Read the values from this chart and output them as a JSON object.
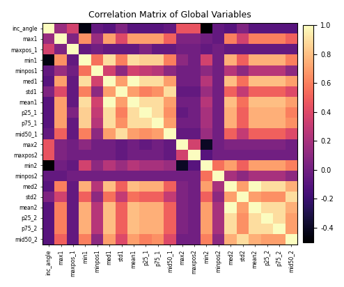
{
  "labels": [
    "inc_angle",
    "max1",
    "maxpos_1",
    "min1",
    "minpos1",
    "med1",
    "std1",
    "mean1",
    "p25_1",
    "p75_1",
    "mid50_1",
    "max2",
    "maxpos2",
    "min2",
    "minpos2",
    "med2",
    "std2",
    "mean2",
    "p25_2",
    "p75_2",
    "mid50_2"
  ],
  "title": "Correlation Matrix of Global Variables",
  "cmap": "magma",
  "vmin": -0.5,
  "vmax": 1.0,
  "figsize": [
    4.94,
    4.12
  ],
  "dpi": 100,
  "matrix": [
    [
      1.0,
      0.15,
      0.35,
      -0.45,
      -0.05,
      -0.1,
      0.05,
      -0.1,
      -0.1,
      -0.1,
      -0.05,
      0.45,
      0.45,
      -0.5,
      -0.05,
      -0.1,
      0.05,
      -0.1,
      -0.1,
      -0.1,
      -0.1
    ],
    [
      0.15,
      1.0,
      0.05,
      0.65,
      0.15,
      0.7,
      0.4,
      0.7,
      0.7,
      0.7,
      0.5,
      0.05,
      0.05,
      0.0,
      -0.05,
      0.6,
      0.35,
      0.6,
      0.6,
      0.6,
      0.5
    ],
    [
      0.35,
      0.05,
      1.0,
      -0.05,
      0.0,
      -0.05,
      -0.05,
      -0.05,
      0.05,
      -0.05,
      -0.05,
      0.0,
      0.0,
      -0.05,
      0.0,
      -0.05,
      -0.05,
      -0.05,
      -0.05,
      -0.05,
      -0.05
    ],
    [
      -0.45,
      0.65,
      -0.05,
      1.0,
      0.55,
      0.9,
      0.6,
      0.9,
      0.85,
      0.85,
      0.6,
      0.1,
      0.0,
      0.35,
      0.0,
      0.75,
      0.5,
      0.75,
      0.75,
      0.75,
      0.6
    ],
    [
      -0.05,
      0.15,
      0.0,
      0.55,
      1.0,
      0.35,
      0.1,
      0.35,
      0.3,
      0.25,
      0.1,
      0.0,
      0.0,
      0.1,
      0.0,
      0.25,
      0.1,
      0.25,
      0.25,
      0.25,
      0.1
    ],
    [
      -0.1,
      0.7,
      -0.05,
      0.9,
      0.35,
      1.0,
      0.7,
      1.0,
      0.9,
      0.9,
      0.7,
      0.0,
      0.0,
      0.25,
      0.0,
      0.8,
      0.55,
      0.8,
      0.8,
      0.8,
      0.7
    ],
    [
      0.05,
      0.4,
      -0.05,
      0.6,
      0.1,
      0.7,
      1.0,
      0.7,
      0.6,
      0.65,
      0.9,
      -0.05,
      -0.05,
      0.15,
      0.0,
      0.5,
      0.3,
      0.5,
      0.5,
      0.5,
      0.4
    ],
    [
      -0.1,
      0.7,
      -0.05,
      0.9,
      0.35,
      1.0,
      0.7,
      1.0,
      0.9,
      0.9,
      0.7,
      0.0,
      0.0,
      0.25,
      0.0,
      0.8,
      0.55,
      0.8,
      0.8,
      0.8,
      0.7
    ],
    [
      -0.1,
      0.7,
      0.05,
      0.85,
      0.3,
      0.9,
      0.6,
      0.9,
      1.0,
      0.9,
      0.65,
      -0.05,
      0.0,
      0.2,
      0.0,
      0.75,
      0.5,
      0.75,
      0.75,
      0.75,
      0.6
    ],
    [
      -0.1,
      0.7,
      -0.05,
      0.85,
      0.25,
      0.9,
      0.65,
      0.9,
      0.9,
      1.0,
      0.7,
      0.0,
      0.0,
      0.2,
      0.0,
      0.75,
      0.5,
      0.75,
      0.75,
      0.75,
      0.65
    ],
    [
      -0.05,
      0.5,
      -0.05,
      0.6,
      0.1,
      0.7,
      0.9,
      0.7,
      0.65,
      0.7,
      1.0,
      -0.05,
      -0.05,
      0.15,
      0.0,
      0.5,
      0.3,
      0.5,
      0.5,
      0.5,
      0.4
    ],
    [
      0.45,
      0.05,
      0.0,
      0.1,
      0.0,
      0.0,
      -0.05,
      0.0,
      -0.05,
      0.0,
      -0.05,
      1.0,
      0.35,
      -0.4,
      0.0,
      0.05,
      0.05,
      0.05,
      0.05,
      0.05,
      0.0
    ],
    [
      0.45,
      0.05,
      0.0,
      0.0,
      0.0,
      0.0,
      -0.05,
      0.0,
      0.0,
      0.0,
      -0.05,
      0.35,
      1.0,
      -0.1,
      0.0,
      0.0,
      0.0,
      0.0,
      0.0,
      0.0,
      0.0
    ],
    [
      -0.5,
      0.0,
      -0.05,
      0.35,
      0.1,
      0.25,
      0.15,
      0.25,
      0.2,
      0.2,
      0.15,
      -0.4,
      -0.1,
      1.0,
      0.55,
      0.7,
      0.5,
      0.7,
      0.7,
      0.7,
      0.6
    ],
    [
      -0.05,
      -0.05,
      0.0,
      0.0,
      0.0,
      0.0,
      0.0,
      0.0,
      0.0,
      0.0,
      0.0,
      0.0,
      0.0,
      0.55,
      1.0,
      0.2,
      0.1,
      0.2,
      0.2,
      0.2,
      0.1
    ],
    [
      -0.1,
      0.6,
      -0.05,
      0.75,
      0.25,
      0.8,
      0.5,
      0.8,
      0.75,
      0.75,
      0.5,
      0.05,
      0.0,
      0.7,
      0.2,
      1.0,
      0.7,
      1.0,
      0.9,
      0.9,
      0.75
    ],
    [
      0.05,
      0.35,
      -0.05,
      0.5,
      0.1,
      0.55,
      0.3,
      0.55,
      0.5,
      0.5,
      0.3,
      0.05,
      0.0,
      0.5,
      0.1,
      0.7,
      1.0,
      0.7,
      0.65,
      0.65,
      0.9
    ],
    [
      -0.1,
      0.6,
      -0.05,
      0.75,
      0.25,
      0.8,
      0.5,
      0.8,
      0.75,
      0.75,
      0.5,
      0.05,
      0.0,
      0.7,
      0.2,
      1.0,
      0.7,
      1.0,
      0.9,
      0.9,
      0.75
    ],
    [
      -0.1,
      0.6,
      -0.05,
      0.75,
      0.25,
      0.8,
      0.5,
      0.8,
      0.75,
      0.75,
      0.5,
      0.05,
      0.0,
      0.7,
      0.2,
      0.9,
      0.65,
      0.9,
      1.0,
      0.9,
      0.7
    ],
    [
      -0.1,
      0.6,
      -0.05,
      0.75,
      0.25,
      0.8,
      0.5,
      0.8,
      0.75,
      0.75,
      0.5,
      0.05,
      0.0,
      0.7,
      0.2,
      0.9,
      0.65,
      0.9,
      0.9,
      1.0,
      0.7
    ],
    [
      -0.1,
      0.5,
      -0.05,
      0.6,
      0.1,
      0.7,
      0.4,
      0.7,
      0.6,
      0.65,
      0.4,
      0.0,
      0.0,
      0.6,
      0.1,
      0.75,
      0.9,
      0.75,
      0.7,
      0.7,
      1.0
    ]
  ]
}
